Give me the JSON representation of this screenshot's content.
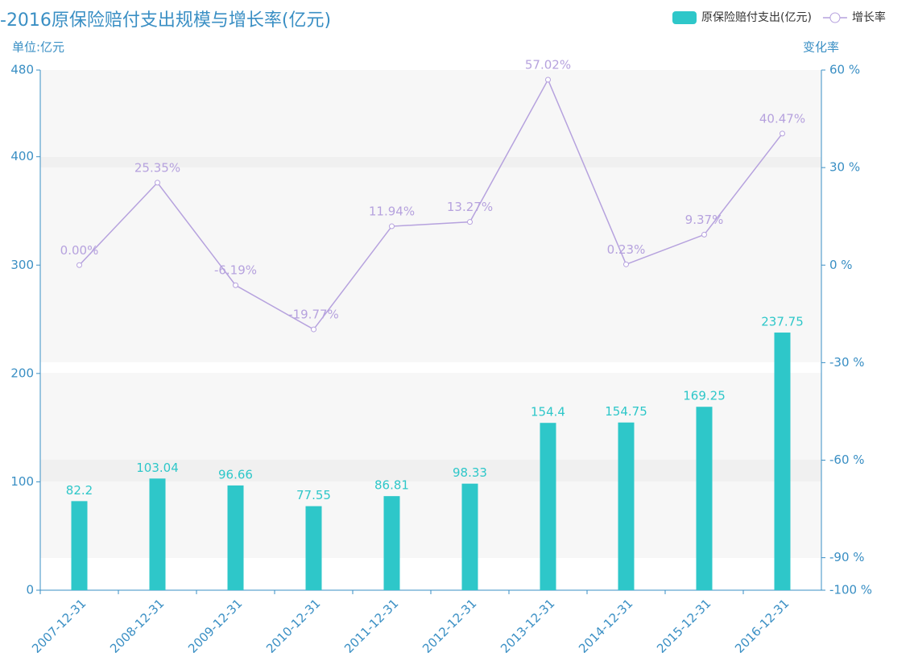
{
  "chart_data": {
    "type": "bar_line",
    "title": "-2016原保险赔付支出规模与增长率(亿元)",
    "y_label": "单位:亿元",
    "y2_label": "变化率",
    "categories": [
      "2007-12-31",
      "2008-12-31",
      "2009-12-31",
      "2010-12-31",
      "2011-12-31",
      "2012-12-31",
      "2013-12-31",
      "2014-12-31",
      "2015-12-31",
      "2016-12-31"
    ],
    "series": [
      {
        "name": "原保险赔付支出(亿元)",
        "type": "bar",
        "color": "#2ec7c9",
        "values": [
          82.2,
          103.04,
          96.66,
          77.55,
          86.81,
          98.33,
          154.4,
          154.75,
          169.25,
          237.75
        ]
      },
      {
        "name": "增长率",
        "type": "line",
        "color": "#b6a2de",
        "axis": "y2",
        "values": [
          0,
          25.35,
          -6.19,
          -19.77,
          11.94,
          13.27,
          57.02,
          0.23,
          9.37,
          40.47
        ],
        "value_labels": [
          "0.00%",
          "25.35%",
          "-6.19%",
          "-19.77%",
          "11.94%",
          "13.27%",
          "57.02%",
          "0.23%",
          "9.37%",
          "40.47%"
        ]
      }
    ],
    "ylim": [
      0,
      480
    ],
    "yticks": [
      0,
      100,
      200,
      300,
      400,
      480
    ],
    "y2lim": [
      -100,
      60
    ],
    "y2ticks": [
      {
        "value": -100,
        "label": "-100 %"
      },
      {
        "value": -90,
        "label": "-90 %"
      },
      {
        "value": -60,
        "label": "-60 %"
      },
      {
        "value": -30,
        "label": "-30 %"
      },
      {
        "value": 0,
        "label": "0 %"
      },
      {
        "value": 30,
        "label": "30 %"
      },
      {
        "value": 60,
        "label": "60 %"
      }
    ],
    "legend": "top-right"
  }
}
